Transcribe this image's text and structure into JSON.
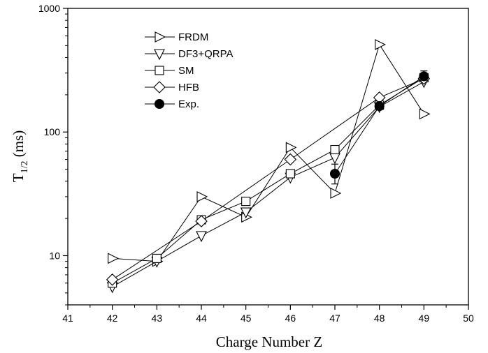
{
  "chart_data": {
    "type": "scatter",
    "xlabel": "Charge Number Z",
    "ylabel_main": "T",
    "ylabel_sub": "1/2",
    "ylabel_unit": " (ms)",
    "xlim": [
      41,
      50
    ],
    "ylim": [
      4,
      1000
    ],
    "yscale": "log",
    "x_ticks": [
      "41",
      "42",
      "43",
      "44",
      "45",
      "46",
      "47",
      "48",
      "49",
      "50"
    ],
    "y_ticks": [
      "10",
      "100",
      "1000"
    ],
    "legend_position": "top-left",
    "series": [
      {
        "name": "FRDM",
        "marker": "triangle-right",
        "filled": false,
        "x": [
          42,
          43,
          44,
          45,
          46,
          47,
          48,
          49
        ],
        "y": [
          9.5,
          9.0,
          30,
          20.5,
          75,
          32,
          510,
          140
        ]
      },
      {
        "name": "DF3+QRPA",
        "marker": "triangle-down",
        "filled": false,
        "x": [
          42,
          43,
          44,
          45,
          46,
          47,
          48,
          49
        ],
        "y": [
          5.6,
          9.0,
          14.5,
          22.5,
          43,
          62,
          160,
          255
        ]
      },
      {
        "name": "SM",
        "marker": "square",
        "filled": false,
        "x": [
          42,
          43,
          44,
          45,
          46,
          47,
          48,
          49
        ],
        "y": [
          6.0,
          9.5,
          19.5,
          27.5,
          46,
          72,
          165,
          275
        ]
      },
      {
        "name": "HFB",
        "marker": "diamond",
        "filled": false,
        "x": [
          42,
          44,
          46,
          48,
          49
        ],
        "y": [
          6.4,
          19,
          60,
          190,
          270
        ]
      },
      {
        "name": "Exp.",
        "marker": "circle",
        "filled": true,
        "x": [
          47,
          48,
          49
        ],
        "y": [
          46,
          162,
          282
        ],
        "err_low": [
          8,
          10,
          20
        ],
        "err_high": [
          9,
          10,
          30
        ]
      }
    ]
  }
}
